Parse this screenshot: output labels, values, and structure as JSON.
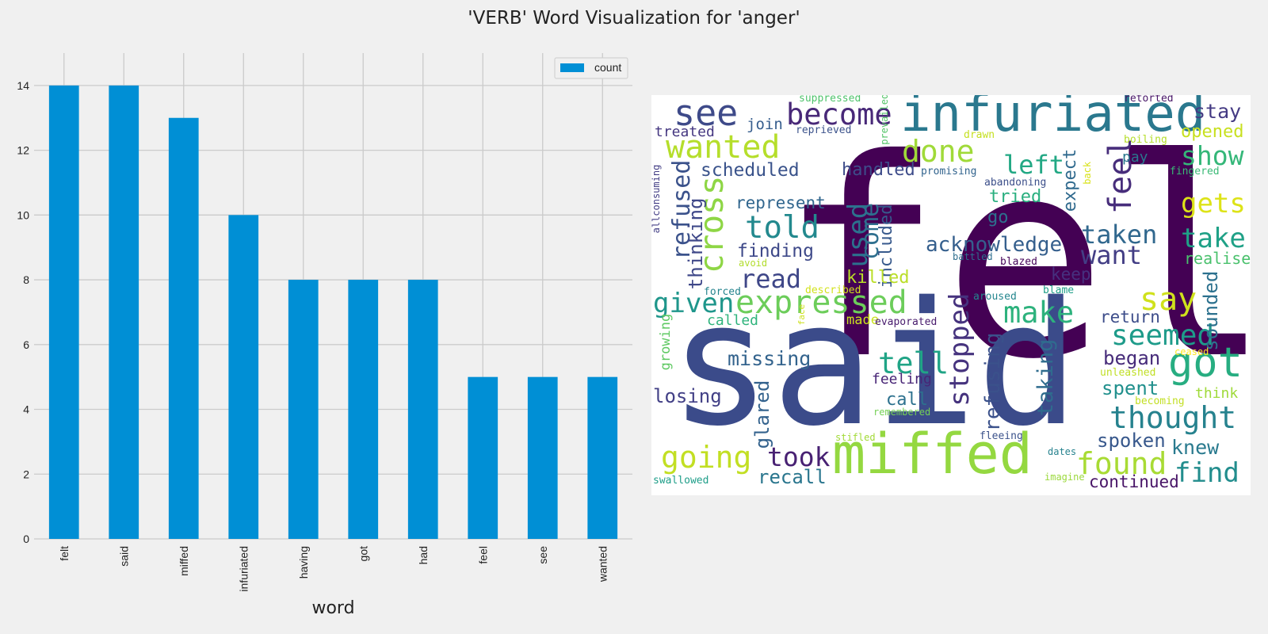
{
  "title": "'VERB' Word Visualization for 'anger'",
  "chart_data": {
    "type": "bar",
    "categories": [
      "felt",
      "said",
      "miffed",
      "infuriated",
      "having",
      "got",
      "had",
      "feel",
      "see",
      "wanted"
    ],
    "series": [
      {
        "name": "count",
        "values": [
          14,
          14,
          13,
          10,
          8,
          8,
          8,
          5,
          5,
          5
        ],
        "color": "#008fd5"
      }
    ],
    "xlabel": "word",
    "ylabel": "",
    "ylim": [
      0,
      15
    ],
    "yticks": [
      0,
      2,
      4,
      6,
      8,
      10,
      12,
      14
    ],
    "grid": true,
    "legend": "top-right"
  },
  "wordcloud": {
    "words": [
      {
        "text": "felt",
        "color": "#440154"
      },
      {
        "text": "said",
        "color": "#3b4b8a"
      },
      {
        "text": "miffed",
        "color": "#94d840"
      },
      {
        "text": "infuriated",
        "color": "#2a788e"
      },
      {
        "text": "got",
        "color": "#27ad81"
      },
      {
        "text": "see",
        "color": "#3e4a89"
      },
      {
        "text": "become",
        "color": "#482878"
      },
      {
        "text": "wanted",
        "color": "#b5de2b"
      },
      {
        "text": "done",
        "color": "#a0da39"
      },
      {
        "text": "feel",
        "color": "#472d7b"
      },
      {
        "text": "stay",
        "color": "#443a83"
      },
      {
        "text": "opened",
        "color": "#c8e020"
      },
      {
        "text": "show",
        "color": "#35b779"
      },
      {
        "text": "left",
        "color": "#22a884"
      },
      {
        "text": "gets",
        "color": "#dde318"
      },
      {
        "text": "take",
        "color": "#1fa187"
      },
      {
        "text": "realise",
        "color": "#4ac16d"
      },
      {
        "text": "refused",
        "color": "#3b528b"
      },
      {
        "text": "cross",
        "color": "#8ed645"
      },
      {
        "text": "told",
        "color": "#23898e"
      },
      {
        "text": "taken",
        "color": "#31688e"
      },
      {
        "text": "want",
        "color": "#433e85"
      },
      {
        "text": "say",
        "color": "#d0e11c"
      },
      {
        "text": "expressed",
        "color": "#6ccd5a"
      },
      {
        "text": "given",
        "color": "#1f968b"
      },
      {
        "text": "read",
        "color": "#3f4788"
      },
      {
        "text": "make",
        "color": "#2db27d"
      },
      {
        "text": "seemed",
        "color": "#1e9b8a"
      },
      {
        "text": "thought",
        "color": "#26828e"
      },
      {
        "text": "going",
        "color": "#c2df23"
      },
      {
        "text": "took",
        "color": "#482173"
      },
      {
        "text": "found",
        "color": "#a8db34"
      },
      {
        "text": "find",
        "color": "#228d8d"
      },
      {
        "text": "tell",
        "color": "#20a486"
      },
      {
        "text": "stopped",
        "color": "#46337e"
      },
      {
        "text": "used",
        "color": "#2c728e"
      },
      {
        "text": "come",
        "color": "#2e6f8e"
      },
      {
        "text": "scheduled",
        "color": "#3a538b"
      },
      {
        "text": "handled",
        "color": "#3e4c8a"
      },
      {
        "text": "acknowledge",
        "color": "#355f8d"
      },
      {
        "text": "thinking",
        "color": "#3f4889"
      },
      {
        "text": "missing",
        "color": "#33638d"
      },
      {
        "text": "losing",
        "color": "#424086"
      },
      {
        "text": "recall",
        "color": "#2a768e"
      },
      {
        "text": "spoken",
        "color": "#38588c"
      },
      {
        "text": "knew",
        "color": "#297a8e"
      },
      {
        "text": "continued",
        "color": "#481467"
      },
      {
        "text": "spent",
        "color": "#21908d"
      },
      {
        "text": "began",
        "color": "#472c7a"
      },
      {
        "text": "return",
        "color": "#3d4d8a"
      },
      {
        "text": "sounded",
        "color": "#2c718e"
      },
      {
        "text": "keep",
        "color": "#46307e"
      },
      {
        "text": "taking",
        "color": "#2f6c8e"
      },
      {
        "text": "refusing",
        "color": "#3b518b"
      },
      {
        "text": "glared",
        "color": "#33628d"
      },
      {
        "text": "expect",
        "color": "#306a8e"
      },
      {
        "text": "included",
        "color": "#37598c"
      },
      {
        "text": "represent",
        "color": "#31668e"
      },
      {
        "text": "finding",
        "color": "#3e4989"
      },
      {
        "text": "killed",
        "color": "#bade28"
      },
      {
        "text": "tried",
        "color": "#29af7f"
      },
      {
        "text": "go",
        "color": "#2d708e"
      },
      {
        "text": "join",
        "color": "#365d8d"
      },
      {
        "text": "treated",
        "color": "#453781"
      },
      {
        "text": "called",
        "color": "#2fb47c"
      },
      {
        "text": "made",
        "color": "#cae11f"
      },
      {
        "text": "feeling",
        "color": "#482576"
      },
      {
        "text": "call",
        "color": "#2d718e"
      },
      {
        "text": "growing",
        "color": "#5ec962"
      },
      {
        "text": "pay",
        "color": "#2a778e"
      },
      {
        "text": "think",
        "color": "#9fda3a"
      },
      {
        "text": "suppressed",
        "color": "#4ec36b"
      },
      {
        "text": "reprieved",
        "color": "#3b528b"
      },
      {
        "text": "retorted",
        "color": "#481668"
      },
      {
        "text": "prevailed",
        "color": "#54c568"
      },
      {
        "text": "drawn",
        "color": "#c5e021"
      },
      {
        "text": "boiling",
        "color": "#b5de2b"
      },
      {
        "text": "fingered",
        "color": "#3aba76"
      },
      {
        "text": "promising",
        "color": "#32648e"
      },
      {
        "text": "abandoning",
        "color": "#3c4f8a"
      },
      {
        "text": "back",
        "color": "#d8e219"
      },
      {
        "text": "allconsuming",
        "color": "#433e85"
      },
      {
        "text": "battled",
        "color": "#2e6e8e"
      },
      {
        "text": "blazed",
        "color": "#450559"
      },
      {
        "text": "avoid",
        "color": "#b2dd2d"
      },
      {
        "text": "forced",
        "color": "#25848e"
      },
      {
        "text": "described",
        "color": "#d2e21b"
      },
      {
        "text": "aroused",
        "color": "#24868e"
      },
      {
        "text": "blame",
        "color": "#1f9f88"
      },
      {
        "text": "face",
        "color": "#cde11d"
      },
      {
        "text": "evaporated",
        "color": "#481b6d"
      },
      {
        "text": "ceased",
        "color": "#fde725"
      },
      {
        "text": "unleashed",
        "color": "#c0df25"
      },
      {
        "text": "becoming",
        "color": "#c2df23"
      },
      {
        "text": "remembered",
        "color": "#75d054"
      },
      {
        "text": "stifled",
        "color": "#a2da37"
      },
      {
        "text": "fleeing",
        "color": "#3b528b"
      },
      {
        "text": "dates",
        "color": "#26828e"
      },
      {
        "text": "imagine",
        "color": "#9bd93c"
      },
      {
        "text": "swallowed",
        "color": "#1f9e89"
      }
    ]
  }
}
